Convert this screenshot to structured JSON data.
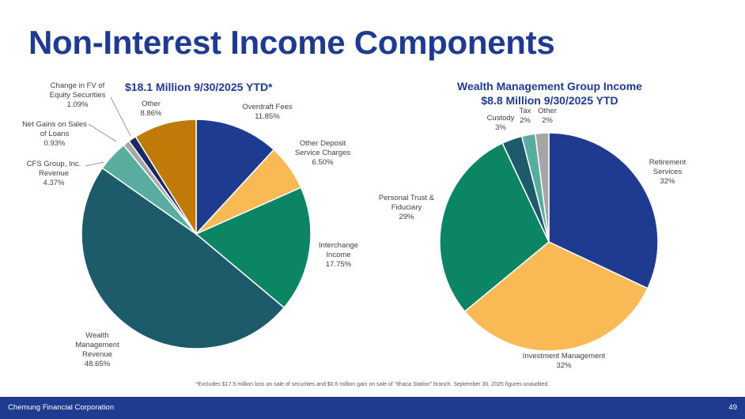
{
  "page": {
    "title": "Non-Interest Income Components",
    "footnote": "*Excludes $17.5 million loss on sale of securities and $0.6 million gain on sale of “Ithaca Station” branch.  September 30, 2025 figures unaudited.",
    "footer_company": "Chemung Financial Corporation",
    "page_number": "49",
    "brand_color": "#1f3b8f"
  },
  "chart_data": [
    {
      "type": "pie",
      "title": "$18.1 Million 9/30/2025 YTD*",
      "unit": "%",
      "slices": [
        {
          "label": [
            "Overdraft Fees",
            "11.85%"
          ],
          "value": 11.85,
          "color": "#1f3b8f"
        },
        {
          "label": [
            "Other Deposit",
            "Service Charges",
            "6.50%"
          ],
          "value": 6.5,
          "color": "#f9b955"
        },
        {
          "label": [
            "Interchange",
            "Income",
            "17.75%"
          ],
          "value": 17.75,
          "color": "#0c8565"
        },
        {
          "label": [
            "Wealth",
            "Management",
            "Revenue",
            "48.65%"
          ],
          "value": 48.65,
          "color": "#1d5b6a"
        },
        {
          "label": [
            "CFS Group, Inc.",
            "Revenue",
            "4.37%"
          ],
          "value": 4.37,
          "color": "#58ad9f"
        },
        {
          "label": [
            "Net Gains on Sales",
            "of Loans",
            "0.93%"
          ],
          "value": 0.93,
          "color": "#a6a6a6"
        },
        {
          "label": [
            "Change in FV of",
            "Equity Securities",
            "1.09%"
          ],
          "value": 1.09,
          "color": "#1b2a5e"
        },
        {
          "label": [
            "Other",
            "8.86%"
          ],
          "value": 8.86,
          "color": "#c07a08"
        }
      ]
    },
    {
      "type": "pie",
      "title": "Wealth Management Group Income $8.8 Million 9/30/2025 YTD",
      "title_lines": [
        "Wealth Management Group Income",
        "$8.8 Million 9/30/2025 YTD"
      ],
      "unit": "%",
      "slices": [
        {
          "label": [
            "Retirement",
            "Services",
            "32%"
          ],
          "value": 32,
          "color": "#1f3b8f"
        },
        {
          "label": [
            "Investment Management",
            "32%"
          ],
          "value": 32,
          "color": "#f9b955"
        },
        {
          "label": [
            "Personal Trust &",
            "Fiduciary",
            "29%"
          ],
          "value": 29,
          "color": "#0c8565"
        },
        {
          "label": [
            "Custody",
            "3%"
          ],
          "value": 3,
          "color": "#1d5b6a"
        },
        {
          "label": [
            "Tax",
            "2%"
          ],
          "value": 2,
          "color": "#58ad9f"
        },
        {
          "label": [
            "Other",
            "2%"
          ],
          "value": 2,
          "color": "#a6a6a6"
        }
      ]
    }
  ]
}
